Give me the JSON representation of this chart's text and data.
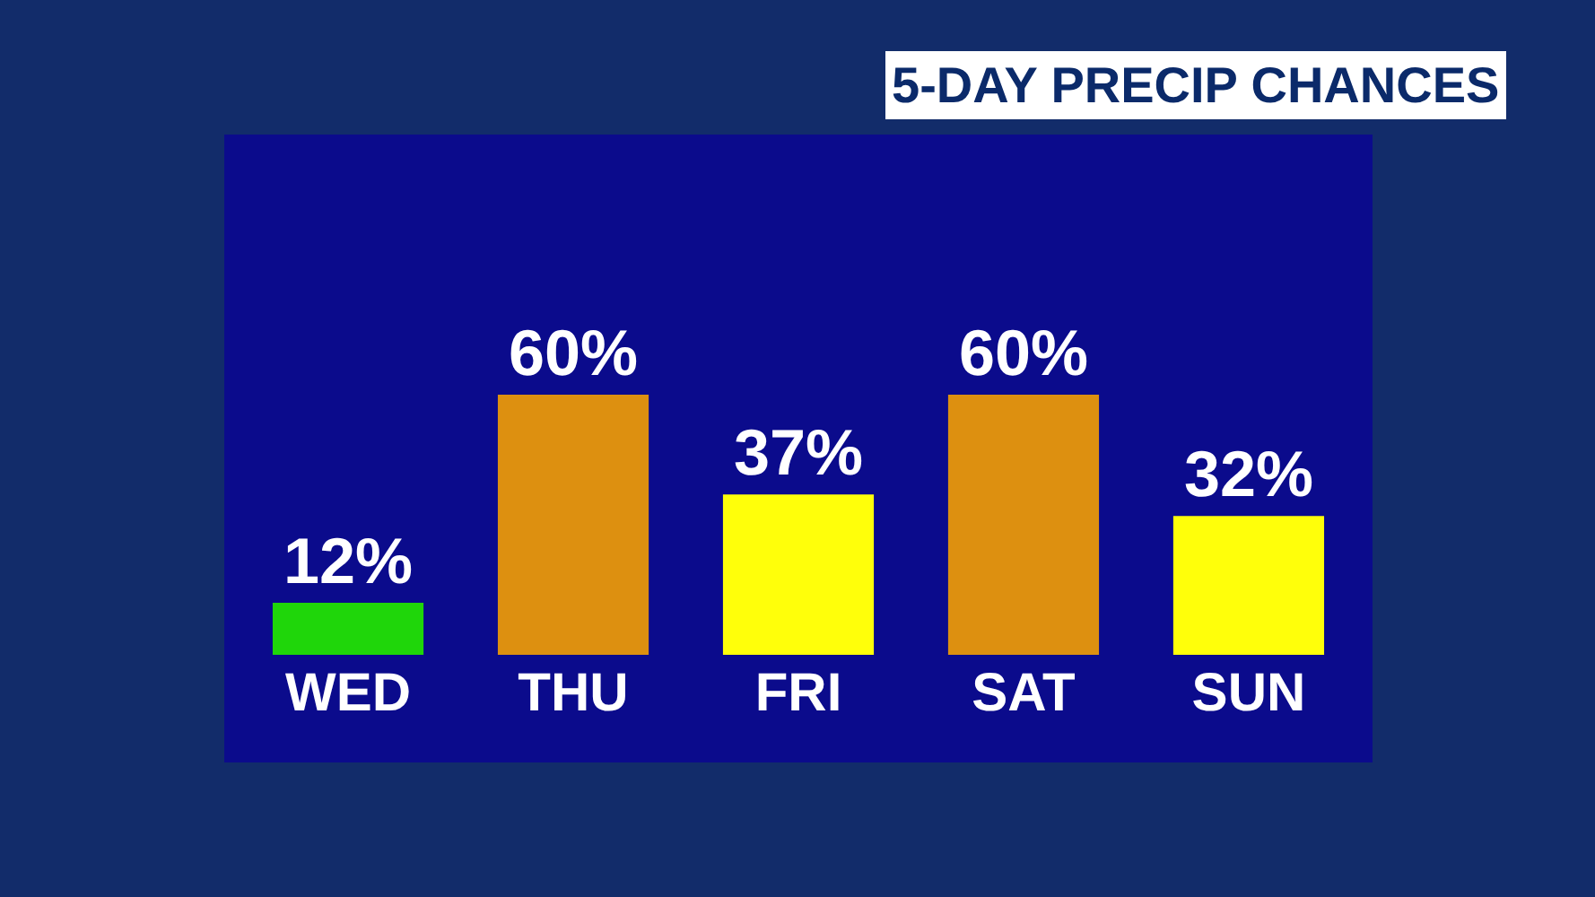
{
  "chart_data": {
    "type": "bar",
    "title": "5-DAY PRECIP CHANCES",
    "categories": [
      "WED",
      "THU",
      "FRI",
      "SAT",
      "SUN"
    ],
    "values": [
      12,
      60,
      37,
      60,
      32
    ],
    "value_labels": [
      "12%",
      "60%",
      "37%",
      "60%",
      "32%"
    ],
    "colors": [
      "#1fd60a",
      "#dd9010",
      "#ffff0a",
      "#dd9010",
      "#ffff0a"
    ],
    "grid": false,
    "legend": false
  }
}
